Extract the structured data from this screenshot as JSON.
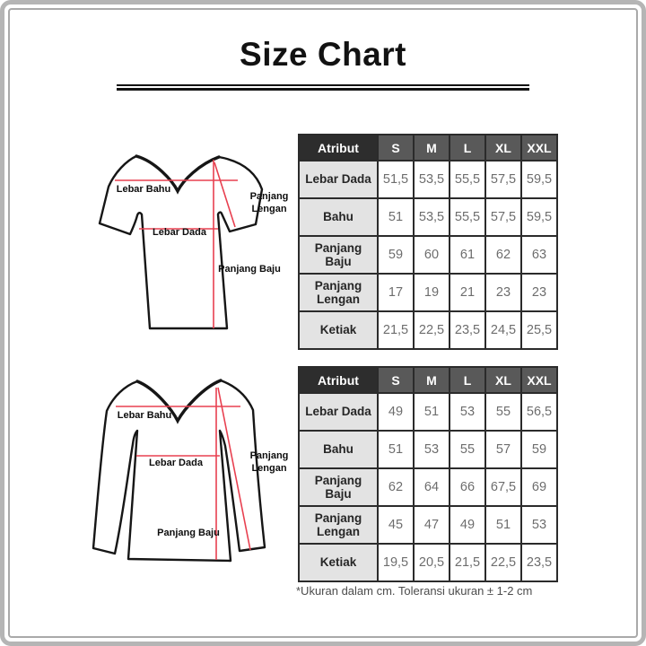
{
  "page": {
    "title": "Size Chart",
    "footnote": "*Ukuran dalam cm. Toleransi ukuran ± 1-2 cm"
  },
  "colors": {
    "measure_line_red": "#e84050",
    "header_dark": "#2d2d2d",
    "header_gray": "#595959",
    "label_cell_bg": "#e3e3e3",
    "value_text": "#6d6d6d",
    "table_border": "#2b2b2b",
    "frame_gray": "#a9a9a9"
  },
  "diagrams": [
    {
      "name": "short-sleeve-shirt",
      "labels": {
        "lebar_bahu": "Lebar Bahu",
        "lebar_dada": "Lebar Dada",
        "panjang_lengan_line1": "Panjang",
        "panjang_lengan_line2": "Lengan",
        "panjang_baju": "Panjang Baju"
      }
    },
    {
      "name": "long-sleeve-shirt",
      "labels": {
        "lebar_bahu": "Lebar Bahu",
        "lebar_dada": "Lebar Dada",
        "panjang_lengan_line1": "Panjang",
        "panjang_lengan_line2": "Lengan",
        "panjang_baju": "Panjang Baju"
      }
    }
  ],
  "tables": [
    {
      "name": "short-sleeve-size-table",
      "columns": [
        "Atribut",
        "S",
        "M",
        "L",
        "XL",
        "XXL"
      ],
      "rows": [
        {
          "label": "Lebar Dada",
          "values": [
            "51,5",
            "53,5",
            "55,5",
            "57,5",
            "59,5"
          ]
        },
        {
          "label": "Bahu",
          "values": [
            "51",
            "53,5",
            "55,5",
            "57,5",
            "59,5"
          ]
        },
        {
          "label": "Panjang Baju",
          "values": [
            "59",
            "60",
            "61",
            "62",
            "63"
          ]
        },
        {
          "label": "Panjang Lengan",
          "values": [
            "17",
            "19",
            "21",
            "23",
            "23"
          ]
        },
        {
          "label": "Ketiak",
          "values": [
            "21,5",
            "22,5",
            "23,5",
            "24,5",
            "25,5"
          ]
        }
      ]
    },
    {
      "name": "long-sleeve-size-table",
      "columns": [
        "Atribut",
        "S",
        "M",
        "L",
        "XL",
        "XXL"
      ],
      "rows": [
        {
          "label": "Lebar Dada",
          "values": [
            "49",
            "51",
            "53",
            "55",
            "56,5"
          ]
        },
        {
          "label": "Bahu",
          "values": [
            "51",
            "53",
            "55",
            "57",
            "59"
          ]
        },
        {
          "label": "Panjang Baju",
          "values": [
            "62",
            "64",
            "66",
            "67,5",
            "69"
          ]
        },
        {
          "label": "Panjang Lengan",
          "values": [
            "45",
            "47",
            "49",
            "51",
            "53"
          ]
        },
        {
          "label": "Ketiak",
          "values": [
            "19,5",
            "20,5",
            "21,5",
            "22,5",
            "23,5"
          ]
        }
      ]
    }
  ]
}
